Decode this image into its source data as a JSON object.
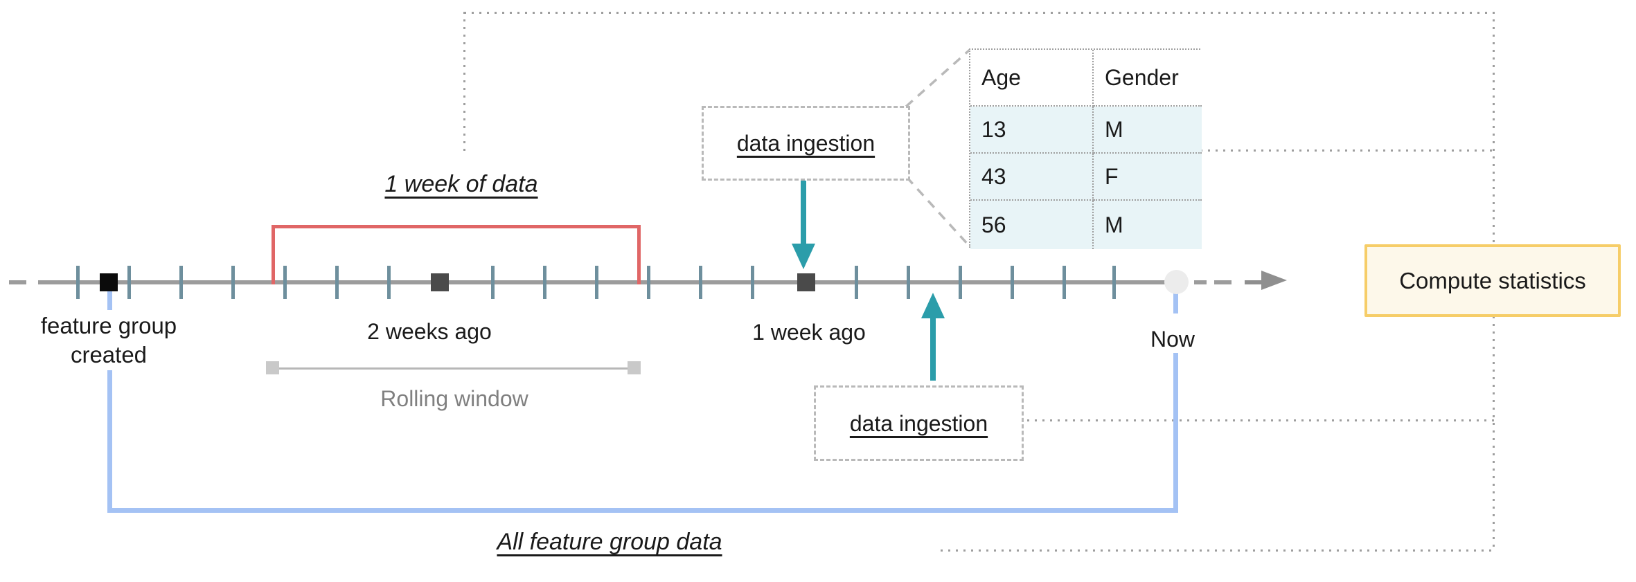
{
  "labels": {
    "one_week_of_data": "1 week of data",
    "feature_group_created_line1": "feature group",
    "feature_group_created_line2": "created",
    "two_weeks_ago": "2 weeks ago",
    "one_week_ago": "1 week ago",
    "now": "Now",
    "rolling_window": "Rolling window",
    "all_feature_group_data": "All feature group data"
  },
  "callouts": {
    "data_ingestion_top": "data ingestion",
    "data_ingestion_bottom": "data ingestion",
    "compute_statistics": "Compute statistics"
  },
  "table": {
    "headers": [
      "Age",
      "Gender"
    ],
    "rows": [
      [
        "13",
        "M"
      ],
      [
        "43",
        "F"
      ],
      [
        "56",
        "M"
      ]
    ]
  },
  "colors": {
    "timeline_gray": "#9c9c9c",
    "tick_slate": "#6e8f9d",
    "marker_black": "#0b0b0b",
    "marker_dark_gray": "#4a4a4a",
    "now_circle_gray": "#ececec",
    "red_bracket": "#e06666",
    "blue_bracket": "#a4c2f4",
    "teal_arrow": "#2b9daa",
    "compute_border_gold": "#f6cd68",
    "compute_fill_cream": "#fdf8ea",
    "table_cell_blue": "#e8f4f7",
    "dotted_connector_gray": "#9e9e9e",
    "dashed_border_gray": "#b9b9b9",
    "muted_text_gray": "#808080"
  }
}
